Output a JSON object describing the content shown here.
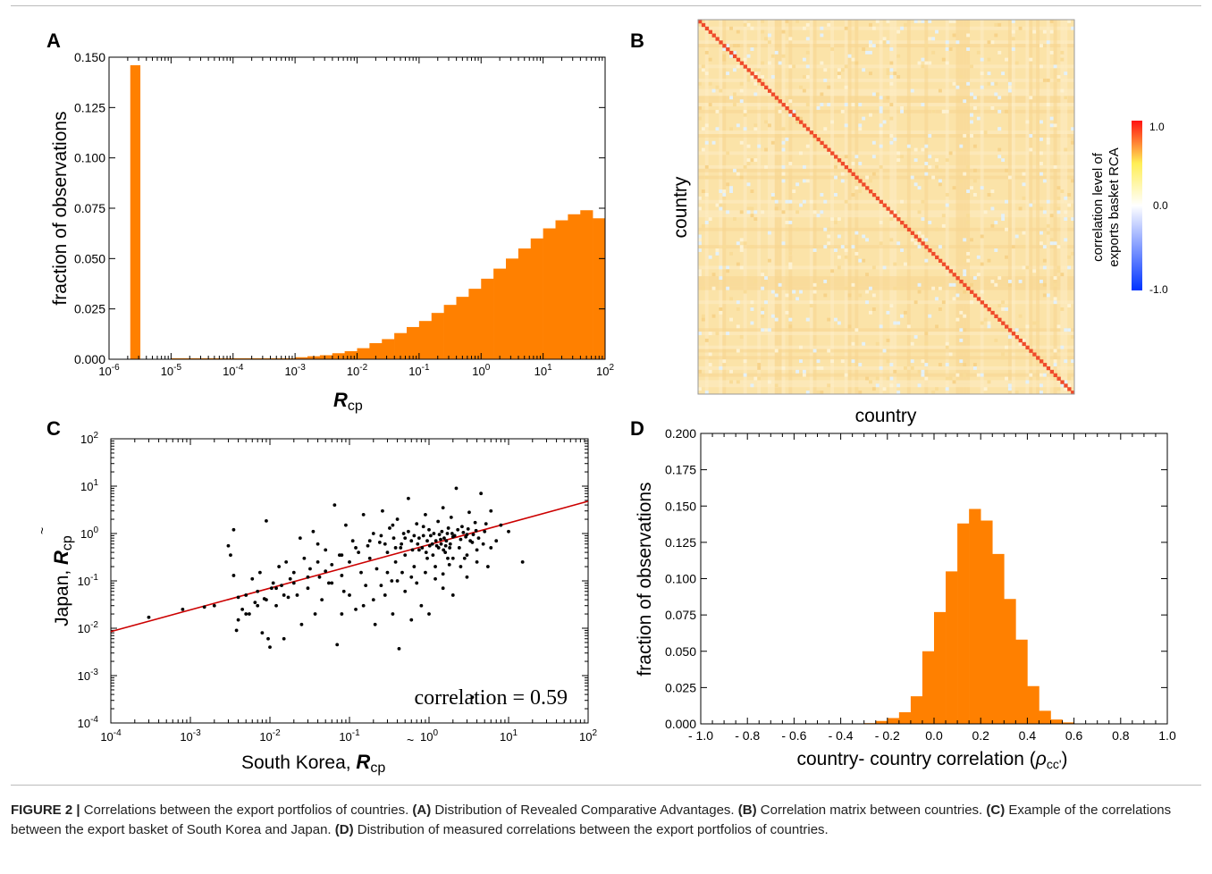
{
  "panels": {
    "A": {
      "letter": "A",
      "chart_data": {
        "type": "bar",
        "xscale": "log",
        "xlim": [
          1e-06,
          100
        ],
        "ylim": [
          0,
          0.15
        ],
        "xlabel_main": "R",
        "xlabel_sub": "cp",
        "ylabel": "fraction of observations",
        "yticks": [
          "0.000",
          "0.025",
          "0.050",
          "0.075",
          "0.100",
          "0.125",
          "0.150"
        ],
        "ytick_values": [
          0,
          0.025,
          0.05,
          0.075,
          0.1,
          0.125,
          0.15
        ],
        "xtick_exponents": [
          "-6",
          "-5",
          "-4",
          "-3",
          "-2",
          "-1",
          "0",
          "1",
          "2"
        ],
        "bar_color": "#ff8000",
        "zero_bar": {
          "x_from": 2.2e-06,
          "x_to": 3.2e-06,
          "value": 0.146
        },
        "bins_log_from": -5,
        "bins_log_width": 0.2,
        "values": [
          0.0005,
          0.0005,
          0.0005,
          0.0005,
          0.0005,
          0.0005,
          0.0005,
          0.0005,
          0.0005,
          0.0005,
          0.001,
          0.0015,
          0.002,
          0.003,
          0.004,
          0.0055,
          0.008,
          0.01,
          0.013,
          0.016,
          0.019,
          0.023,
          0.027,
          0.031,
          0.035,
          0.04,
          0.045,
          0.05,
          0.055,
          0.06,
          0.065,
          0.069,
          0.072,
          0.074,
          0.07,
          0.061,
          0.049,
          0.037,
          0.026,
          0.016,
          0.009,
          0.005,
          0.003,
          0.002,
          0.0015,
          0.001,
          0.0008,
          0.0005,
          0.0005,
          0.0004,
          0.0003,
          0.0003,
          0.0002,
          0.0002,
          0.0002
        ]
      }
    },
    "B": {
      "letter": "B",
      "chart_data": {
        "type": "heatmap",
        "xlabel": "country",
        "ylabel": "country",
        "colorbar_label_line1": "correlation level of",
        "colorbar_label_line2": "exports basket RCA",
        "colorbar_ticks": [
          "1.0",
          "0.0",
          "-1.0"
        ],
        "colorbar_values": [
          1.0,
          0.0,
          -1.0
        ],
        "range": [
          -1.0,
          1.0
        ],
        "n": 108,
        "diagonal_value": 1.0,
        "off_diagonal_typical": 0.2,
        "colors": {
          "low": "#0033ff",
          "mid": "#ffffff",
          "midhigh": "#ffee55",
          "high": "#ff1111"
        }
      }
    },
    "C": {
      "letter": "C",
      "chart_data": {
        "type": "scatter",
        "xscale": "log",
        "yscale": "log",
        "xlim": [
          0.0001,
          100
        ],
        "ylim": [
          0.0001,
          100
        ],
        "xlabel_prefix": "South Korea, ",
        "xlabel_main": "R",
        "xlabel_sub": "cp",
        "xlabel_tilde": "~",
        "ylabel_prefix": "Japan, ",
        "ylabel_main": "R",
        "ylabel_sub": "cp",
        "ylabel_tilde": "~",
        "tick_exponents": [
          "-4",
          "-3",
          "-2",
          "-1",
          "0",
          "1",
          "2"
        ],
        "annotation": "correlation = 0.59",
        "fit_line": {
          "color": "#cc0000",
          "x": [
            0.0001,
            100
          ],
          "y": [
            0.0085,
            4.8
          ]
        },
        "point_color": "#000000",
        "points": [
          [
            0.0003,
            0.017
          ],
          [
            0.0008,
            0.025
          ],
          [
            0.0015,
            0.028
          ],
          [
            0.002,
            0.03
          ],
          [
            0.003,
            0.55
          ],
          [
            0.0032,
            0.35
          ],
          [
            0.0035,
            1.2
          ],
          [
            0.0035,
            0.13
          ],
          [
            0.0038,
            0.009
          ],
          [
            0.004,
            0.045
          ],
          [
            0.0045,
            0.025
          ],
          [
            0.005,
            0.05
          ],
          [
            0.0055,
            0.02
          ],
          [
            0.006,
            0.11
          ],
          [
            0.0065,
            0.035
          ],
          [
            0.007,
            0.06
          ],
          [
            0.0075,
            0.15
          ],
          [
            0.008,
            0.008
          ],
          [
            0.0085,
            0.042
          ],
          [
            0.009,
            1.85
          ],
          [
            0.0095,
            0.006
          ],
          [
            0.01,
            0.004
          ],
          [
            0.0105,
            0.07
          ],
          [
            0.011,
            0.09
          ],
          [
            0.012,
            0.03
          ],
          [
            0.013,
            0.2
          ],
          [
            0.014,
            0.08
          ],
          [
            0.015,
            0.006
          ],
          [
            0.016,
            0.25
          ],
          [
            0.017,
            0.045
          ],
          [
            0.018,
            0.11
          ],
          [
            0.02,
            0.15
          ],
          [
            0.022,
            0.05
          ],
          [
            0.024,
            0.8
          ],
          [
            0.025,
            0.012
          ],
          [
            0.027,
            0.3
          ],
          [
            0.03,
            0.07
          ],
          [
            0.032,
            0.18
          ],
          [
            0.035,
            1.1
          ],
          [
            0.037,
            0.02
          ],
          [
            0.04,
            0.6
          ],
          [
            0.042,
            0.12
          ],
          [
            0.045,
            0.04
          ],
          [
            0.05,
            0.45
          ],
          [
            0.055,
            0.09
          ],
          [
            0.06,
            0.22
          ],
          [
            0.065,
            4.0
          ],
          [
            0.07,
            0.0045
          ],
          [
            0.075,
            0.35
          ],
          [
            0.08,
            0.13
          ],
          [
            0.085,
            0.06
          ],
          [
            0.09,
            1.5
          ],
          [
            0.1,
            0.25
          ],
          [
            0.11,
            0.7
          ],
          [
            0.12,
            0.025
          ],
          [
            0.13,
            0.4
          ],
          [
            0.14,
            0.15
          ],
          [
            0.15,
            2.5
          ],
          [
            0.16,
            0.08
          ],
          [
            0.17,
            0.55
          ],
          [
            0.18,
            0.3
          ],
          [
            0.2,
            1.0
          ],
          [
            0.21,
            0.012
          ],
          [
            0.22,
            0.18
          ],
          [
            0.24,
            0.65
          ],
          [
            0.26,
            3.0
          ],
          [
            0.28,
            0.05
          ],
          [
            0.3,
            0.4
          ],
          [
            0.32,
            1.3
          ],
          [
            0.34,
            0.1
          ],
          [
            0.36,
            0.8
          ],
          [
            0.38,
            0.25
          ],
          [
            0.4,
            2.0
          ],
          [
            0.42,
            0.0037
          ],
          [
            0.44,
            0.5
          ],
          [
            0.46,
            0.15
          ],
          [
            0.48,
            1.0
          ],
          [
            0.5,
            0.35
          ],
          [
            0.55,
            5.5
          ],
          [
            0.6,
            0.7
          ],
          [
            0.65,
            0.2
          ],
          [
            0.7,
            1.6
          ],
          [
            0.75,
            0.45
          ],
          [
            0.8,
            0.03
          ],
          [
            0.85,
            0.9
          ],
          [
            0.9,
            2.5
          ],
          [
            0.95,
            0.3
          ],
          [
            1.0,
            1.2
          ],
          [
            1.1,
            0.6
          ],
          [
            1.2,
            0.11
          ],
          [
            1.3,
            1.8
          ],
          [
            1.4,
            0.75
          ],
          [
            1.5,
            3.5
          ],
          [
            1.6,
            0.4
          ],
          [
            1.7,
            1.0
          ],
          [
            1.8,
            0.22
          ],
          [
            1.9,
            2.2
          ],
          [
            2.0,
            0.85
          ],
          [
            2.2,
            9.0
          ],
          [
            2.4,
            0.5
          ],
          [
            2.6,
            1.4
          ],
          [
            2.8,
            0.3
          ],
          [
            3.0,
            0.95
          ],
          [
            3.2,
            2.8
          ],
          [
            3.5,
            0.65
          ],
          [
            3.8,
            1.7
          ],
          [
            4.0,
            0.45
          ],
          [
            4.5,
            7.0
          ],
          [
            5.0,
            1.1
          ],
          [
            5.5,
            0.2
          ],
          [
            6.0,
            3.0
          ],
          [
            7.0,
            0.7
          ],
          [
            8.0,
            1.5
          ],
          [
            10.0,
            1.1
          ],
          [
            15.0,
            0.25
          ],
          [
            3.5,
            0.00035
          ],
          [
            0.25,
            0.9
          ],
          [
            0.35,
            1.5
          ],
          [
            0.45,
            0.6
          ],
          [
            0.55,
            1.1
          ],
          [
            0.65,
            0.9
          ],
          [
            0.75,
            0.8
          ],
          [
            0.85,
            1.4
          ],
          [
            0.95,
            0.7
          ],
          [
            1.05,
            0.9
          ],
          [
            1.15,
            1.0
          ],
          [
            1.25,
            0.55
          ],
          [
            1.35,
            0.95
          ],
          [
            1.45,
            1.1
          ],
          [
            1.55,
            0.8
          ],
          [
            1.65,
            0.7
          ],
          [
            1.75,
            1.3
          ],
          [
            1.85,
            0.6
          ],
          [
            1.95,
            1.0
          ],
          [
            2.1,
            0.9
          ],
          [
            2.3,
            1.2
          ],
          [
            2.5,
            0.75
          ],
          [
            2.7,
            1.05
          ],
          [
            2.9,
            0.85
          ],
          [
            3.1,
            1.25
          ],
          [
            3.3,
            0.7
          ],
          [
            3.6,
            0.95
          ],
          [
            3.9,
            1.15
          ],
          [
            4.2,
            0.8
          ],
          [
            4.8,
            0.6
          ],
          [
            5.2,
            1.6
          ],
          [
            0.12,
            0.5
          ],
          [
            0.18,
            0.7
          ],
          [
            0.28,
            0.6
          ],
          [
            0.38,
            0.5
          ],
          [
            0.5,
            0.8
          ],
          [
            0.62,
            0.45
          ],
          [
            0.72,
            0.6
          ],
          [
            0.82,
            0.5
          ],
          [
            0.92,
            0.4
          ],
          [
            1.02,
            0.55
          ],
          [
            1.12,
            0.35
          ],
          [
            1.22,
            0.7
          ],
          [
            1.32,
            0.5
          ],
          [
            1.42,
            0.6
          ],
          [
            1.52,
            0.45
          ],
          [
            1.62,
            0.55
          ],
          [
            1.72,
            0.3
          ],
          [
            1.82,
            0.5
          ],
          [
            0.08,
            0.35
          ],
          [
            0.06,
            0.09
          ],
          [
            0.05,
            0.16
          ],
          [
            0.04,
            0.25
          ],
          [
            0.03,
            0.12
          ],
          [
            0.02,
            0.09
          ],
          [
            0.015,
            0.05
          ],
          [
            0.012,
            0.07
          ],
          [
            0.009,
            0.04
          ],
          [
            0.007,
            0.03
          ],
          [
            0.005,
            0.02
          ],
          [
            0.004,
            0.015
          ],
          [
            0.3,
            0.15
          ],
          [
            0.4,
            0.1
          ],
          [
            0.5,
            0.06
          ],
          [
            0.6,
            0.12
          ],
          [
            0.7,
            0.09
          ],
          [
            0.9,
            0.15
          ],
          [
            1.2,
            0.2
          ],
          [
            1.5,
            0.14
          ],
          [
            2.0,
            0.3
          ],
          [
            2.5,
            0.2
          ],
          [
            3.0,
            0.35
          ],
          [
            4.0,
            0.25
          ],
          [
            0.2,
            0.04
          ],
          [
            0.25,
            0.08
          ],
          [
            0.15,
            0.03
          ],
          [
            0.1,
            0.05
          ],
          [
            0.08,
            0.02
          ],
          [
            0.35,
            0.02
          ],
          [
            1.0,
            0.02
          ],
          [
            0.6,
            0.015
          ],
          [
            2.0,
            0.05
          ],
          [
            1.5,
            0.07
          ],
          [
            3.0,
            0.12
          ],
          [
            6.0,
            0.5
          ]
        ]
      }
    },
    "D": {
      "letter": "D",
      "chart_data": {
        "type": "bar",
        "xlim": [
          -1.0,
          1.0
        ],
        "ylim": [
          0,
          0.2
        ],
        "xlabel": "country- country correlation (",
        "xlabel_symbol": "ρ",
        "xlabel_sub": "cc'",
        "xlabel_close": ")",
        "ylabel": "fraction of observations",
        "xticks": [
          "- 1.0",
          "- 0.8",
          "- 0.6",
          "- 0.4",
          "- 0.2",
          "0.0",
          "0.2",
          "0.4",
          "0.6",
          "0.8",
          "1.0"
        ],
        "xtick_values": [
          -1.0,
          -0.8,
          -0.6,
          -0.4,
          -0.2,
          0.0,
          0.2,
          0.4,
          0.6,
          0.8,
          1.0
        ],
        "yticks": [
          "0.000",
          "0.025",
          "0.050",
          "0.075",
          "0.100",
          "0.125",
          "0.150",
          "0.175",
          "0.200"
        ],
        "ytick_values": [
          0,
          0.025,
          0.05,
          0.075,
          0.1,
          0.125,
          0.15,
          0.175,
          0.2
        ],
        "bar_color": "#ff8000",
        "bins_from": -0.3,
        "bin_width": 0.05,
        "values": [
          0.0005,
          0.002,
          0.004,
          0.008,
          0.019,
          0.05,
          0.077,
          0.105,
          0.138,
          0.148,
          0.14,
          0.117,
          0.086,
          0.058,
          0.026,
          0.009,
          0.003,
          0.001
        ]
      }
    }
  },
  "caption": {
    "figure_label": "FIGURE 2 |",
    "text_1": " Correlations between the export portfolios of countries. ",
    "a_label": "(A)",
    "a_text": " Distribution of Revealed Comparative Advantages. ",
    "b_label": "(B)",
    "b_text": " Correlation matrix between countries. ",
    "c_label": "(C)",
    "c_text": " Example of the correlations between the export basket of South Korea and Japan. ",
    "d_label": "(D)",
    "d_text": " Distribution of measured correlations between the export portfolios of countries."
  }
}
